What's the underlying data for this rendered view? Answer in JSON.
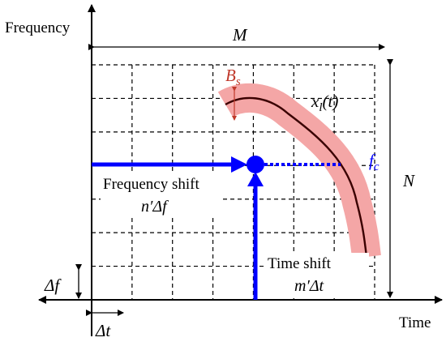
{
  "axes": {
    "y_label": "Frequency",
    "x_label": "Time"
  },
  "dimensions": {
    "width_label": "M",
    "height_label": "N",
    "freq_step": "Δf",
    "time_step": "Δt"
  },
  "grid": {
    "columns": 7,
    "rows": 7
  },
  "signal": {
    "name_main": "x",
    "name_sub": "l",
    "name_arg": "(t)",
    "bandwidth_main": "B",
    "bandwidth_sub": "s",
    "carrier_main": "f",
    "carrier_sub": "c"
  },
  "shifts": {
    "frequency_label": "Frequency shift",
    "frequency_value": "n′Δf",
    "time_label": "Time shift",
    "time_value": "m′Δt"
  },
  "colors": {
    "axis": "#000000",
    "grid": "#000000",
    "shift_arrow": "#0000ff",
    "band": "#f4a6a6",
    "signal_curve": "#3a0000",
    "bandwidth_marker": "#c0392b",
    "carrier_label": "#0000ff"
  }
}
